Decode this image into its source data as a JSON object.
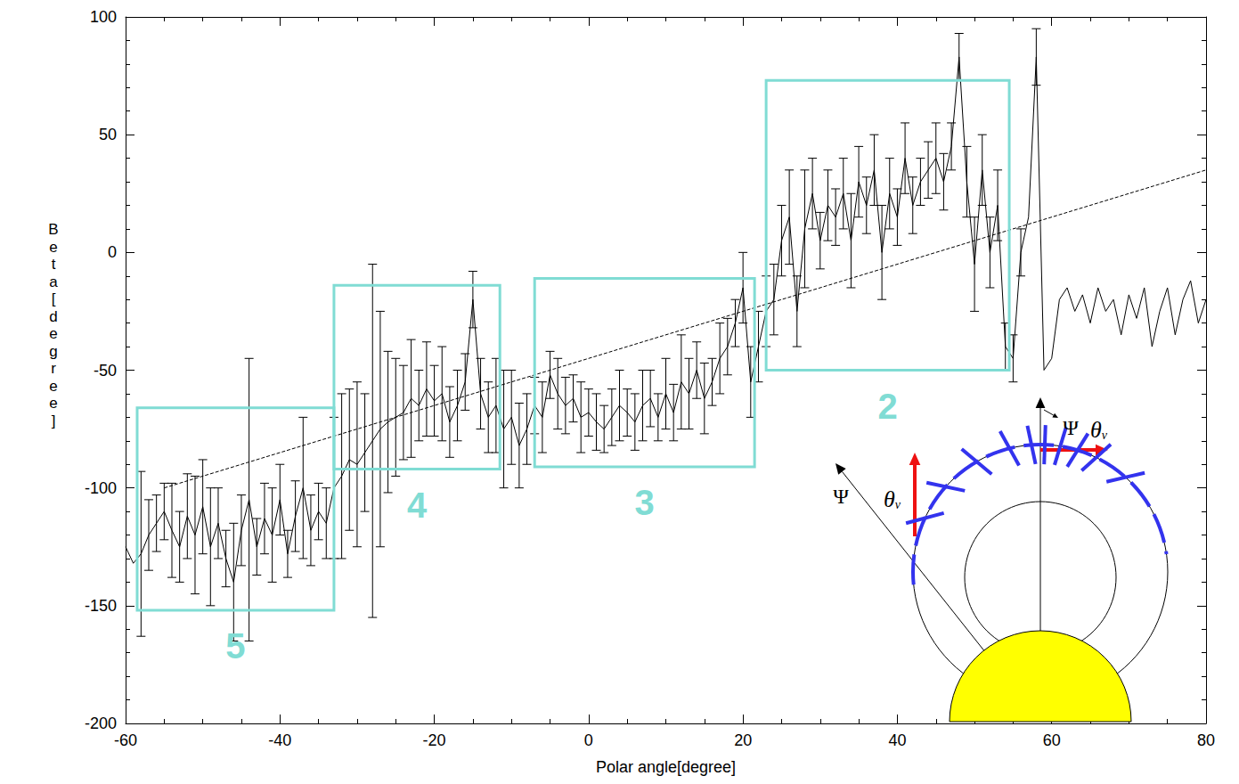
{
  "chart_data": {
    "type": "line",
    "xlabel": "Polar angle[degree]",
    "ylabel": "Beta[degree]",
    "xlim": [
      -60,
      80
    ],
    "ylim": [
      -200,
      100
    ],
    "xticks": [
      -60,
      -40,
      -20,
      0,
      20,
      40,
      60,
      80
    ],
    "yticks": [
      -200,
      -150,
      -100,
      -50,
      0,
      50,
      100
    ],
    "grid": false,
    "series": [
      {
        "color": "#000000",
        "line_style": "solid",
        "marker": "none",
        "x": [
          -60,
          -59,
          -58,
          -57,
          -56,
          -55,
          -54,
          -53,
          -52,
          -51,
          -50,
          -49,
          -48,
          -47,
          -46,
          -45,
          -44,
          -43,
          -42,
          -41,
          -40,
          -39,
          -38,
          -37,
          -36,
          -35,
          -34,
          -33,
          -32,
          -31,
          -30,
          -29,
          -28,
          -27,
          -26,
          -25,
          -24,
          -23,
          -22,
          -21,
          -20,
          -19,
          -18,
          -17,
          -16,
          -15,
          -14,
          -13,
          -12,
          -11,
          -10,
          -9,
          -8,
          -7,
          -6,
          -5,
          -4,
          -3,
          -2,
          -1,
          0,
          1,
          2,
          3,
          4,
          5,
          6,
          7,
          8,
          9,
          10,
          11,
          12,
          13,
          14,
          15,
          16,
          17,
          18,
          19,
          20,
          21,
          22,
          23,
          24,
          25,
          26,
          27,
          28,
          29,
          30,
          31,
          32,
          33,
          34,
          35,
          36,
          37,
          38,
          39,
          40,
          41,
          42,
          43,
          44,
          45,
          46,
          47,
          48,
          49,
          50,
          51,
          52,
          53,
          54,
          55,
          56,
          57,
          58,
          59,
          60,
          61,
          62,
          63,
          64,
          65,
          66,
          67,
          68,
          69,
          70,
          71,
          72,
          73,
          74,
          75,
          76,
          77,
          78,
          79,
          80
        ],
        "values": [
          -125,
          -132,
          -128,
          -120,
          -115,
          -110,
          -118,
          -125,
          -112,
          -120,
          -108,
          -125,
          -115,
          -130,
          -140,
          -118,
          -105,
          -125,
          -113,
          -120,
          -105,
          -128,
          -112,
          -100,
          -118,
          -110,
          -115,
          -100,
          -95,
          -88,
          -90,
          -85,
          -80,
          -75,
          -72,
          -70,
          -68,
          -62,
          -65,
          -58,
          -63,
          -60,
          -72,
          -65,
          -55,
          -20,
          -60,
          -70,
          -65,
          -75,
          -70,
          -82,
          -75,
          -65,
          -70,
          -52,
          -60,
          -65,
          -62,
          -70,
          -68,
          -72,
          -75,
          -70,
          -65,
          -68,
          -72,
          -65,
          -62,
          -70,
          -60,
          -68,
          -55,
          -60,
          -50,
          -62,
          -55,
          -45,
          -40,
          -30,
          -15,
          -55,
          -40,
          -25,
          -20,
          5,
          15,
          -25,
          10,
          25,
          5,
          20,
          15,
          25,
          5,
          30,
          20,
          35,
          0,
          25,
          15,
          40,
          20,
          30,
          35,
          40,
          30,
          45,
          83,
          30,
          -5,
          35,
          0,
          20,
          -40,
          -45,
          0,
          15,
          83,
          -50,
          -45,
          -20,
          -15,
          -25,
          -18,
          -30,
          -15,
          -25,
          -20,
          -35,
          -18,
          -28,
          -15,
          -40,
          -25,
          -15,
          -35,
          -20,
          -12,
          -30,
          -20
        ],
        "errors": [
          null,
          null,
          35,
          15,
          12,
          12,
          20,
          15,
          18,
          25,
          20,
          25,
          15,
          12,
          25,
          15,
          60,
          12,
          15,
          20,
          15,
          10,
          15,
          30,
          15,
          12,
          15,
          30,
          35,
          30,
          35,
          25,
          75,
          50,
          30,
          25,
          20,
          25,
          15,
          20,
          15,
          20,
          15,
          15,
          12,
          12,
          15,
          15,
          20,
          25,
          20,
          18,
          15,
          12,
          15,
          10,
          15,
          12,
          10,
          15,
          10,
          12,
          10,
          12,
          15,
          10,
          12,
          15,
          12,
          10,
          15,
          12,
          20,
          15,
          12,
          15,
          10,
          15,
          12,
          10,
          15,
          15,
          15,
          15,
          15,
          15,
          20,
          15,
          25,
          15,
          12,
          15,
          12,
          15,
          20,
          15,
          12,
          15,
          20,
          15,
          12,
          15,
          12,
          10,
          12,
          15,
          12,
          10,
          10,
          15,
          20,
          15,
          15,
          15,
          10,
          10,
          10,
          null,
          12,
          null,
          null,
          null,
          null,
          null,
          null,
          null,
          null,
          null,
          null,
          null,
          null,
          null,
          null,
          null,
          null,
          null,
          null,
          null,
          null,
          null,
          null
        ]
      },
      {
        "color": "#000000",
        "line_style": "dashed",
        "marker": "none",
        "x": [
          -55,
          80
        ],
        "values": [
          -100,
          35
        ]
      }
    ],
    "regions": [
      {
        "label": "2",
        "x": [
          23,
          54.5
        ],
        "y": [
          -50,
          73
        ],
        "color": "#80dcd4"
      },
      {
        "label": "3",
        "x": [
          -7,
          21.5
        ],
        "y": [
          -91,
          -11
        ],
        "color": "#80dcd4"
      },
      {
        "label": "4",
        "x": [
          -33,
          -11.5
        ],
        "y": [
          -92,
          -14
        ],
        "color": "#80dcd4"
      },
      {
        "label": "5",
        "x": [
          -58.5,
          -33
        ],
        "y": [
          -152,
          -66
        ],
        "color": "#80dcd4"
      }
    ],
    "inset": {
      "psi": "Ψ",
      "theta": "θ",
      "theta_subscript": "v"
    }
  }
}
